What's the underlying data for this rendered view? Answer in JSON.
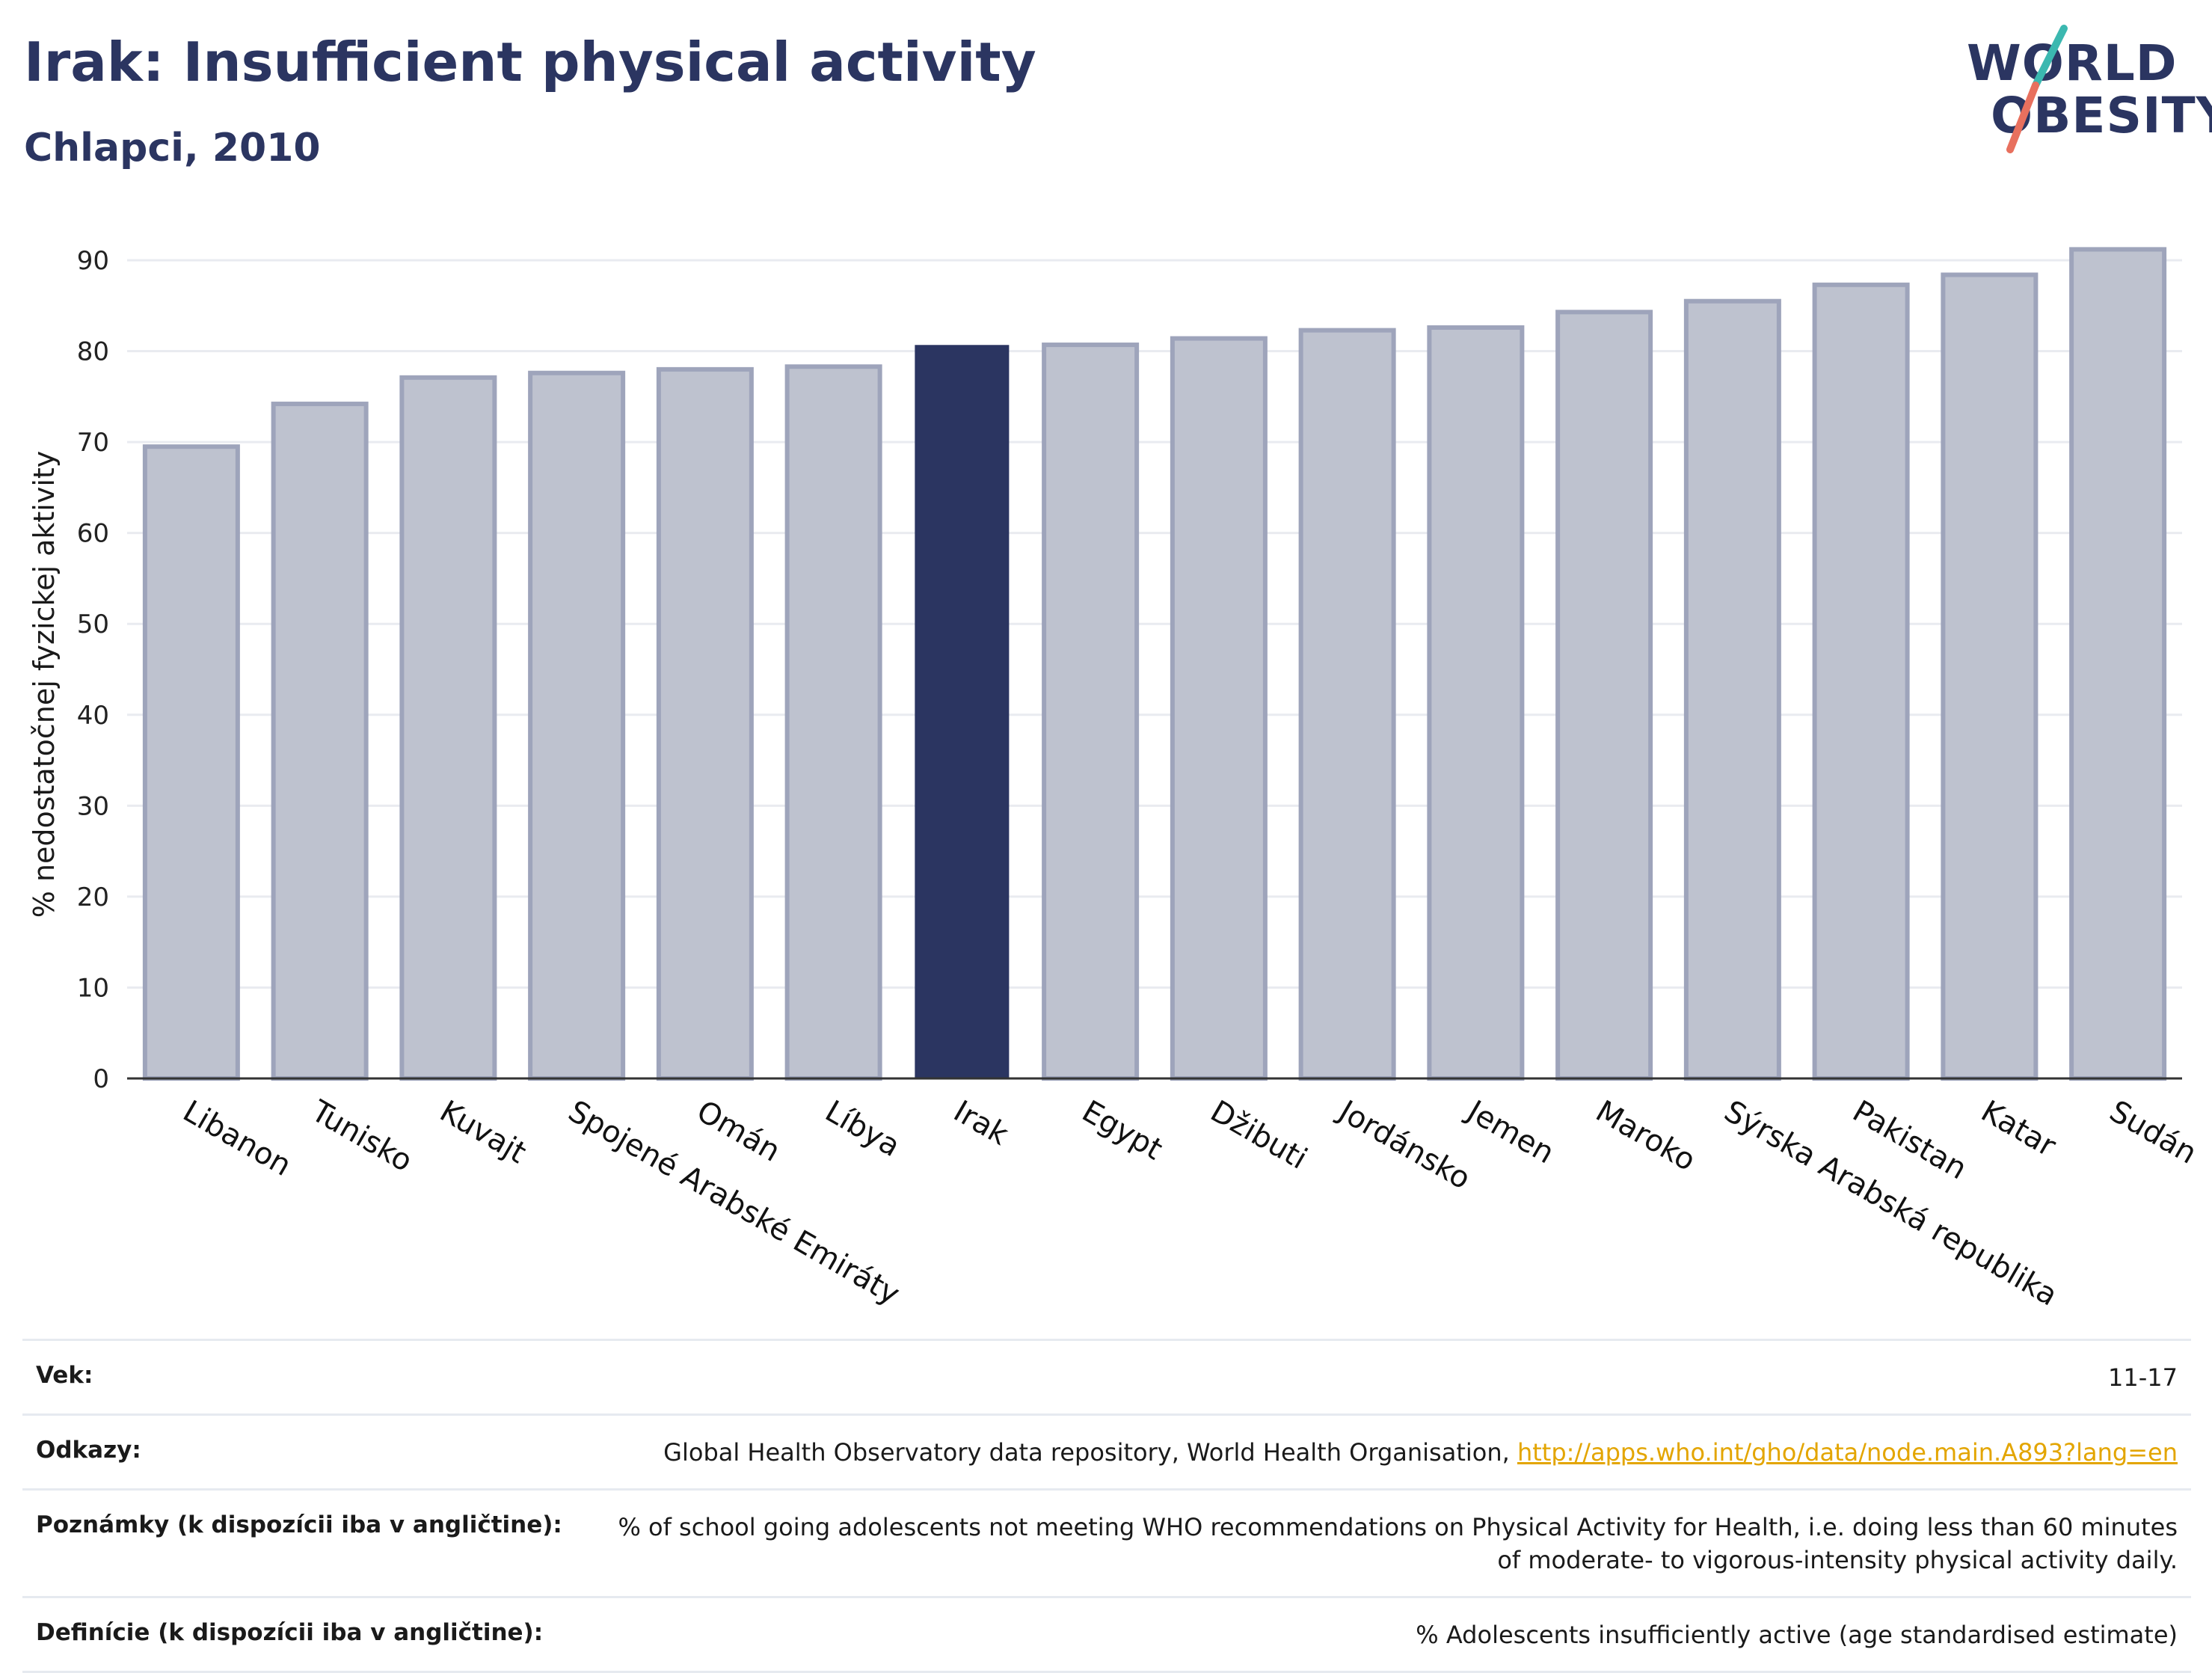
{
  "header": {
    "title": "Irak: Insufficient physical activity",
    "subtitle": "Chlapci, 2010"
  },
  "logo": {
    "line1": "WORLD",
    "line2": "OBESITY"
  },
  "colors": {
    "highlight": "#2b3561",
    "bar": "#bec2cf",
    "bar_edge": "#9ea4bb",
    "accent_teal": "#3bb8b0",
    "accent_red": "#e8705e"
  },
  "chart_data": {
    "type": "bar",
    "categories": [
      "Libanon",
      "Tunisko",
      "Kuvajt",
      "Spojené Arabské Emiráty",
      "Omán",
      "Líbya",
      "Irak",
      "Egypt",
      "Džibuti",
      "Jordánsko",
      "Jemen",
      "Maroko",
      "Sýrska Arabská republika",
      "Pakistan",
      "Katar",
      "Sudán"
    ],
    "values": [
      69.5,
      74.2,
      77.1,
      77.6,
      78.0,
      78.3,
      80.6,
      80.7,
      81.4,
      82.3,
      82.6,
      84.3,
      85.5,
      87.3,
      88.4,
      91.2
    ],
    "highlight": "Irak",
    "ylabel": "% nedostatočnej fyzickej aktivity",
    "ylim": [
      0,
      95
    ],
    "yticks": [
      0,
      10,
      20,
      30,
      40,
      50,
      60,
      70,
      80,
      90
    ],
    "grid": true
  },
  "meta": [
    {
      "label": "Vek:",
      "value": "11-17"
    },
    {
      "label": "Odkazy:",
      "value": "Global Health Observatory data repository, World Health Organisation, ",
      "link": "http://apps.who.int/gho/data/node.main.A893?lang=en"
    },
    {
      "label": "Poznámky (k dispozícii iba v angličtine):",
      "value": "% of school going adolescents not meeting WHO recommendations on Physical Activity for Health, i.e. doing less than 60 minutes of moderate- to vigorous-intensity physical activity daily."
    },
    {
      "label": "Definície (k dispozícii iba v angličtine):",
      "value": "% Adolescents insufficiently active (age standardised estimate)"
    }
  ]
}
